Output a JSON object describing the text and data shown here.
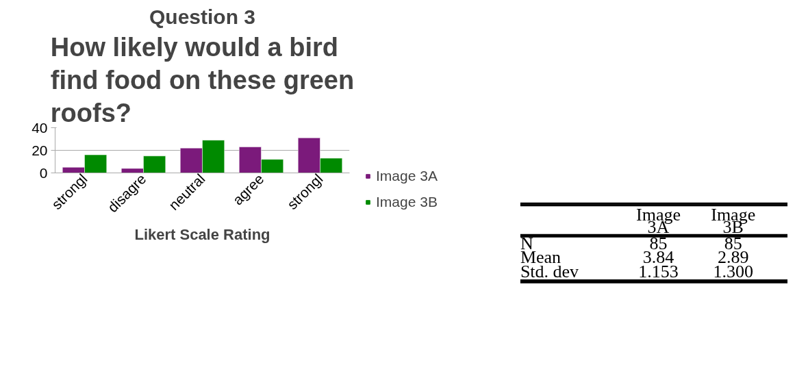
{
  "chart_data": [
    {
      "type": "bar",
      "title": "Question 3",
      "subtitle": "How likely would a bird find food on these green roofs?",
      "xlabel": "Likert Scale Rating",
      "categories": [
        "strongl",
        "disagre",
        "neutral",
        "agree",
        "strongl"
      ],
      "series": [
        {
          "name": "Image 3A",
          "color": "#7b1a7b",
          "values": [
            5,
            4,
            22,
            23,
            31
          ]
        },
        {
          "name": "Image 3B",
          "color": "#008a00",
          "values": [
            16,
            15,
            29,
            12,
            13
          ]
        }
      ],
      "ylim": [
        0,
        40
      ],
      "yticks": [
        0,
        20,
        40
      ],
      "grid": "y",
      "legend": "right"
    },
    {
      "type": "other",
      "categories": [
        "Image 3A",
        "Image 3B"
      ],
      "annotations": [
        "N",
        "85",
        "85",
        "Mean",
        "3.84",
        "2.89",
        "Std. dev",
        "1.153",
        "1.300"
      ]
    }
  ]
}
